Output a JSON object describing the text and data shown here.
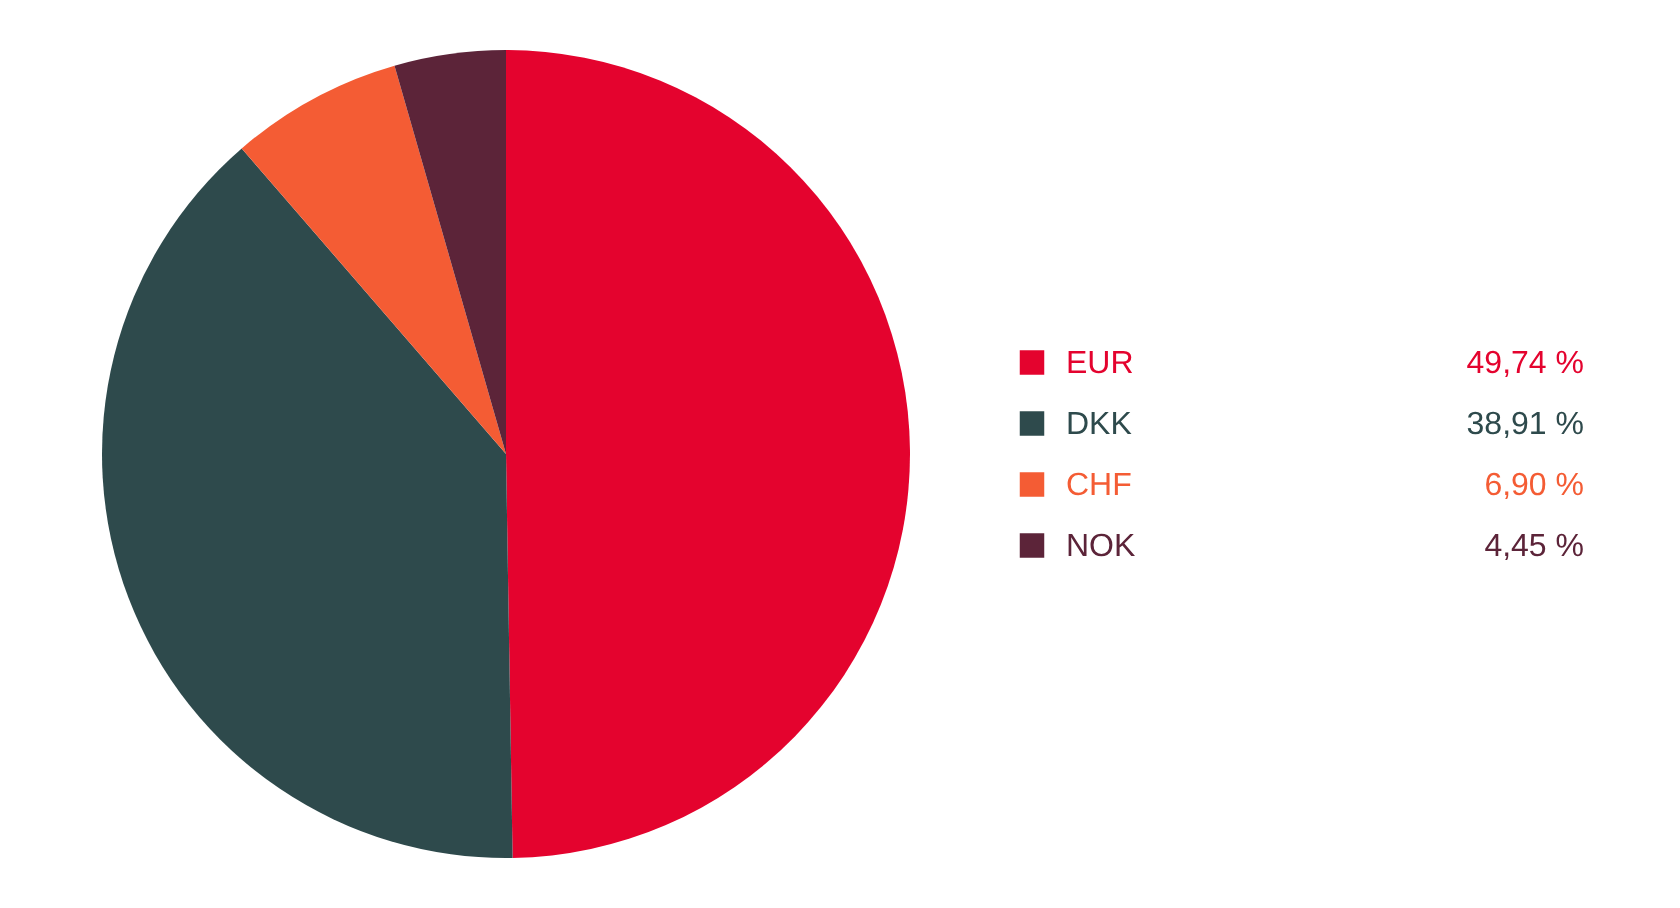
{
  "chart_data": {
    "type": "pie",
    "categories": [
      "EUR",
      "DKK",
      "CHF",
      "NOK"
    ],
    "values": [
      49.74,
      38.91,
      6.9,
      4.45
    ],
    "colors": [
      "#e4032e",
      "#2e4a4c",
      "#f45c34",
      "#5c2439"
    ],
    "value_labels": [
      "49,74 %",
      "38,91 %",
      "6,90 %",
      "4,45 %"
    ],
    "legend": "right"
  }
}
